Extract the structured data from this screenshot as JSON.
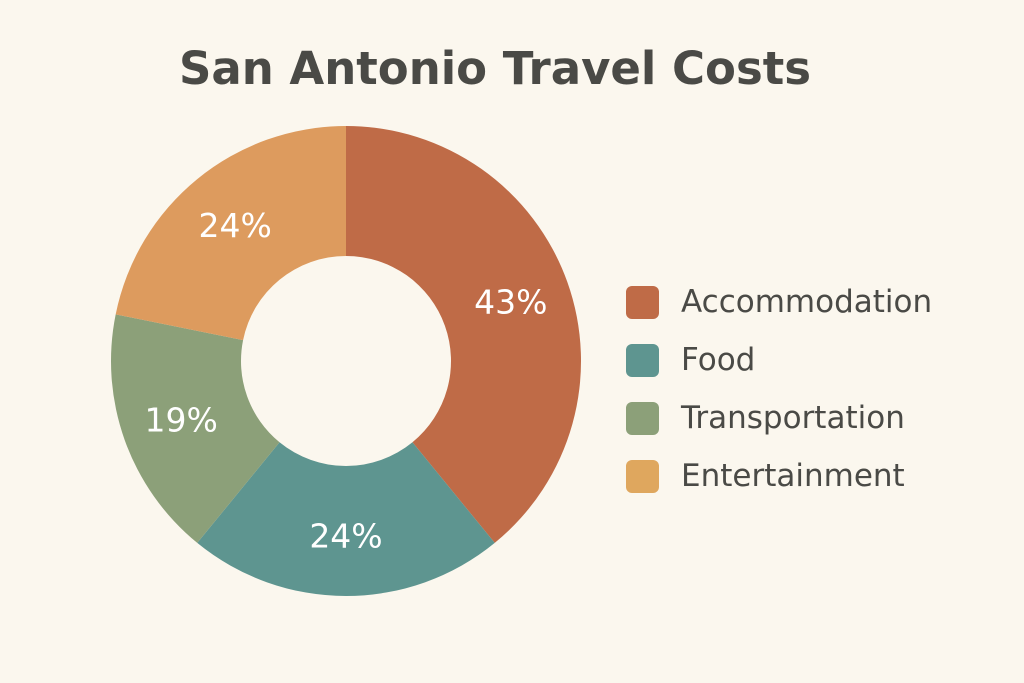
{
  "chart_data": {
    "type": "pie",
    "title": "San Antonio Travel Costs",
    "categories": [
      "Accommodation",
      "Food",
      "Transportation",
      "Entertainment"
    ],
    "slices": [
      {
        "name": "Accommodation",
        "value": 43,
        "label": "43%",
        "color": "#bf6b47"
      },
      {
        "name": "Food",
        "value": 24,
        "label": "24%",
        "color": "#5e9590"
      },
      {
        "name": "Transportation",
        "value": 19,
        "label": "19%",
        "color": "#8ca079"
      },
      {
        "name": "Entertainment",
        "value": 24,
        "label": "24%",
        "color": "#dd9b5e"
      }
    ],
    "legend": {
      "position": "right",
      "items": [
        {
          "label": "Accommodation",
          "color": "#bf6b47"
        },
        {
          "label": "Food",
          "color": "#5e9590"
        },
        {
          "label": "Transportation",
          "color": "#8ca079"
        },
        {
          "label": "Entertainment",
          "color": "#dfa75e"
        }
      ]
    }
  }
}
